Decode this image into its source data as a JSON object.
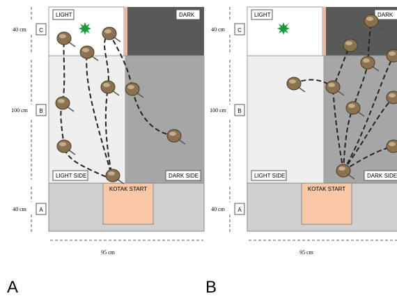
{
  "panels": [
    {
      "label": "A",
      "light": "LIGHT",
      "dark": "DARK",
      "light_side": "LIGHT SIDE",
      "dark_side": "DARK SIDE",
      "start": "KOTAK START",
      "zones": [
        "C",
        "B",
        "A"
      ],
      "dims": {
        "c": "40 cm",
        "b": "100 cm",
        "a": "40 cm",
        "width": "95 cm"
      }
    },
    {
      "label": "B",
      "light": "LIGHT",
      "dark": "DARK",
      "light_side": "LIGHT SIDE",
      "dark_side": "DARK SIDE",
      "start": "KOTAK START",
      "zones": [
        "C",
        "B",
        "A"
      ],
      "dims": {
        "c": "40 cm",
        "b": "100 cm",
        "a": "40 cm",
        "width": "95 cm"
      }
    }
  ]
}
